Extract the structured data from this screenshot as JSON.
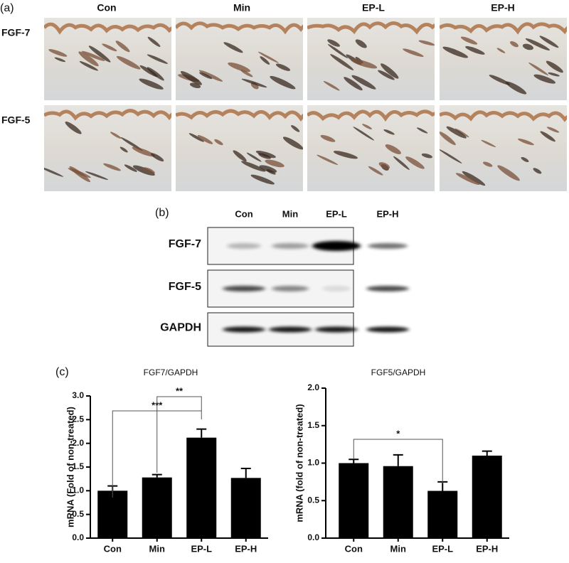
{
  "panel_a": {
    "label": "(a)",
    "columns": [
      "Con",
      "Min",
      "EP-L",
      "EP-H"
    ],
    "rows": [
      "FGF-7",
      "FGF-5"
    ]
  },
  "panel_b": {
    "label": "(b)",
    "lanes": [
      "Con",
      "Min",
      "EP-L",
      "EP-H"
    ],
    "rows": [
      "FGF-7",
      "FGF-5",
      "GAPDH"
    ]
  },
  "panel_c": {
    "label": "(c)"
  },
  "chart_data": [
    {
      "type": "bar",
      "title": "FGF7/GAPDH",
      "y_label": "mRNA (Fold of non-treated)",
      "categories": [
        "Con",
        "Min",
        "EP-L",
        "EP-H"
      ],
      "values": [
        1.0,
        1.28,
        2.12,
        1.27
      ],
      "errors": [
        0.1,
        0.06,
        0.18,
        0.2
      ],
      "color": "#000000",
      "ylim": [
        0,
        3.0
      ],
      "yticks": [
        {
          "value": 0,
          "label": "0.0"
        },
        {
          "value": 0.5,
          "label": "0.5"
        },
        {
          "value": 1.0,
          "label": "1.0"
        },
        {
          "value": 1.5,
          "label": "1.5"
        },
        {
          "value": 2.0,
          "label": "2.0"
        },
        {
          "value": 2.5,
          "label": "2.5"
        },
        {
          "value": 3.0,
          "label": "3.0"
        }
      ],
      "annotations": [
        "***",
        "**"
      ]
    },
    {
      "type": "bar",
      "title": "FGF5/GAPDH",
      "y_label": "mRNA (fold of non-treated)",
      "categories": [
        "Con",
        "Min",
        "EP-L",
        "EP-H"
      ],
      "values": [
        1.0,
        0.96,
        0.63,
        1.1
      ],
      "errors": [
        0.05,
        0.15,
        0.12,
        0.06
      ],
      "color": "#000000",
      "ylim": [
        0,
        2.0
      ],
      "yticks": [
        {
          "value": 0,
          "label": "0.0"
        },
        {
          "value": 0.5,
          "label": "0.5"
        },
        {
          "value": 1.0,
          "label": "1.0"
        },
        {
          "value": 1.5,
          "label": "1.5"
        },
        {
          "value": 2.0,
          "label": "2.0"
        }
      ],
      "annotations": [
        "*"
      ]
    }
  ]
}
